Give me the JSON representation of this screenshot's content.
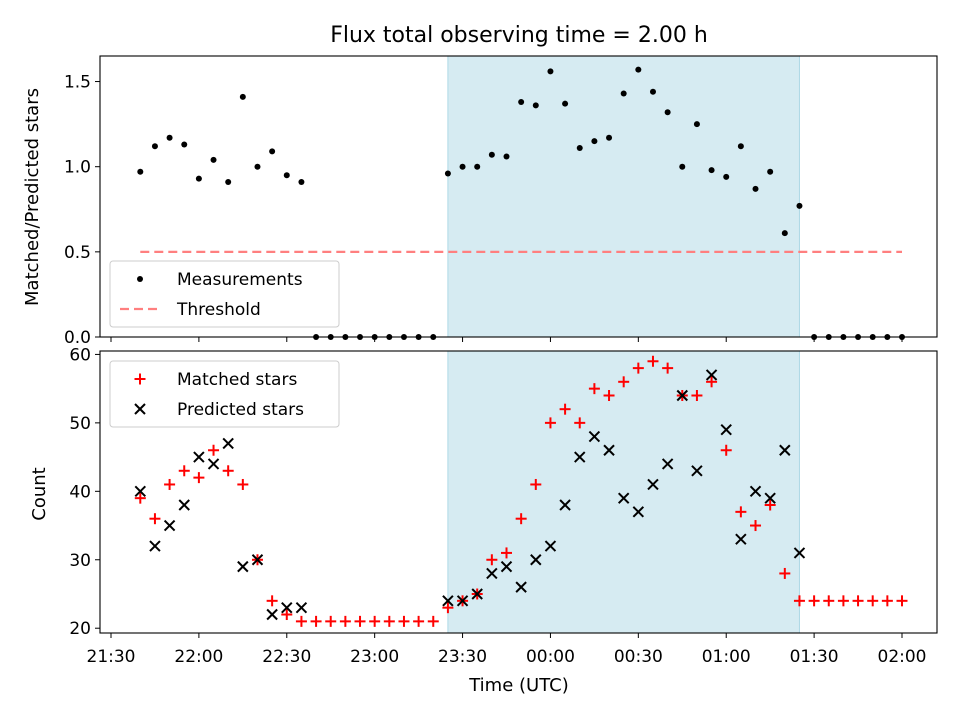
{
  "chart_data": [
    {
      "type": "scatter",
      "title": "Flux total observing time = 2.00 h",
      "ylabel": "Matched/Predicted stars",
      "xlabel": "",
      "x_tick_labels": [
        "21:30",
        "22:00",
        "22:30",
        "23:00",
        "23:30",
        "00:00",
        "00:30",
        "01:00",
        "01:30",
        "02:00"
      ],
      "ylim": [
        0,
        1.65
      ],
      "yticks": [
        0.0,
        0.5,
        1.0,
        1.5
      ],
      "highlight_interval": [
        "23:25",
        "01:25"
      ],
      "legend_location": "lower-left",
      "series": [
        {
          "name": "Measurements",
          "marker": "dot",
          "color": "#000000",
          "x": [
            "21:40",
            "21:45",
            "21:50",
            "21:55",
            "22:00",
            "22:05",
            "22:10",
            "22:15",
            "22:20",
            "22:25",
            "22:30",
            "22:35",
            "22:40",
            "22:45",
            "22:50",
            "22:55",
            "23:00",
            "23:05",
            "23:10",
            "23:15",
            "23:20",
            "23:25",
            "23:30",
            "23:35",
            "23:40",
            "23:45",
            "23:50",
            "23:55",
            "00:00",
            "00:05",
            "00:10",
            "00:15",
            "00:20",
            "00:25",
            "00:30",
            "00:35",
            "00:40",
            "00:45",
            "00:50",
            "00:55",
            "01:00",
            "01:05",
            "01:10",
            "01:15",
            "01:20",
            "01:25",
            "01:30",
            "01:35",
            "01:40",
            "01:45",
            "01:50",
            "01:55",
            "02:00"
          ],
          "values": [
            0.97,
            1.12,
            1.17,
            1.13,
            0.93,
            1.04,
            0.91,
            1.41,
            1.0,
            1.09,
            0.95,
            0.91,
            0,
            0,
            0,
            0,
            0,
            0,
            0,
            0,
            0,
            0.96,
            1.0,
            1.0,
            1.07,
            1.06,
            1.38,
            1.36,
            1.56,
            1.37,
            1.11,
            1.15,
            1.17,
            1.43,
            1.57,
            1.44,
            1.32,
            1.0,
            1.25,
            0.98,
            0.94,
            1.12,
            0.87,
            0.97,
            0.61,
            0.77,
            0,
            0,
            0,
            0,
            0,
            0,
            0
          ]
        },
        {
          "name": "Threshold",
          "marker": "dashed-line",
          "color": "#ff7f7f",
          "x": [
            "21:40",
            "02:00"
          ],
          "values": [
            0.5,
            0.5
          ]
        }
      ]
    },
    {
      "type": "scatter",
      "title": "",
      "ylabel": "Count",
      "xlabel": "Time (UTC)",
      "x_tick_labels": [
        "21:30",
        "22:00",
        "22:30",
        "23:00",
        "23:30",
        "00:00",
        "00:30",
        "01:00",
        "01:30",
        "02:00"
      ],
      "ylim": [
        19.3,
        60.5
      ],
      "yticks": [
        20,
        30,
        40,
        50,
        60
      ],
      "highlight_interval": [
        "23:25",
        "01:25"
      ],
      "legend_location": "upper-left",
      "series": [
        {
          "name": "Matched stars",
          "marker": "plus",
          "color": "#ff0000",
          "x": [
            "21:40",
            "21:45",
            "21:50",
            "21:55",
            "22:00",
            "22:05",
            "22:10",
            "22:15",
            "22:20",
            "22:25",
            "22:30",
            "22:35",
            "22:40",
            "22:45",
            "22:50",
            "22:55",
            "23:00",
            "23:05",
            "23:10",
            "23:15",
            "23:20",
            "23:25",
            "23:30",
            "23:35",
            "23:40",
            "23:45",
            "23:50",
            "23:55",
            "00:00",
            "00:05",
            "00:10",
            "00:15",
            "00:20",
            "00:25",
            "00:30",
            "00:35",
            "00:40",
            "00:45",
            "00:50",
            "00:55",
            "01:00",
            "01:05",
            "01:10",
            "01:15",
            "01:20",
            "01:25",
            "01:30",
            "01:35",
            "01:40",
            "01:45",
            "01:50",
            "01:55",
            "02:00"
          ],
          "values": [
            39,
            36,
            41,
            43,
            42,
            46,
            43,
            41,
            30,
            24,
            22,
            21,
            21,
            21,
            21,
            21,
            21,
            21,
            21,
            21,
            21,
            23,
            24,
            25,
            30,
            31,
            36,
            41,
            50,
            52,
            50,
            55,
            54,
            56,
            58,
            59,
            58,
            54,
            54,
            56,
            46,
            37,
            35,
            38,
            28,
            24,
            24,
            24,
            24,
            24,
            24,
            24,
            24
          ]
        },
        {
          "name": "Predicted stars",
          "marker": "x",
          "color": "#000000",
          "x": [
            "21:40",
            "21:45",
            "21:50",
            "21:55",
            "22:00",
            "22:05",
            "22:10",
            "22:15",
            "22:20",
            "22:25",
            "22:30",
            "22:35",
            "23:25",
            "23:30",
            "23:35",
            "23:40",
            "23:45",
            "23:50",
            "23:55",
            "00:00",
            "00:05",
            "00:10",
            "00:15",
            "00:20",
            "00:25",
            "00:30",
            "00:35",
            "00:40",
            "00:45",
            "00:50",
            "00:55",
            "01:00",
            "01:05",
            "01:10",
            "01:15",
            "01:20",
            "01:25"
          ],
          "values": [
            40,
            32,
            35,
            38,
            45,
            44,
            47,
            29,
            30,
            22,
            23,
            23,
            24,
            24,
            25,
            28,
            29,
            26,
            30,
            32,
            38,
            45,
            48,
            46,
            39,
            37,
            41,
            44,
            54,
            43,
            57,
            49,
            33,
            40,
            39,
            46,
            31
          ]
        }
      ]
    }
  ]
}
